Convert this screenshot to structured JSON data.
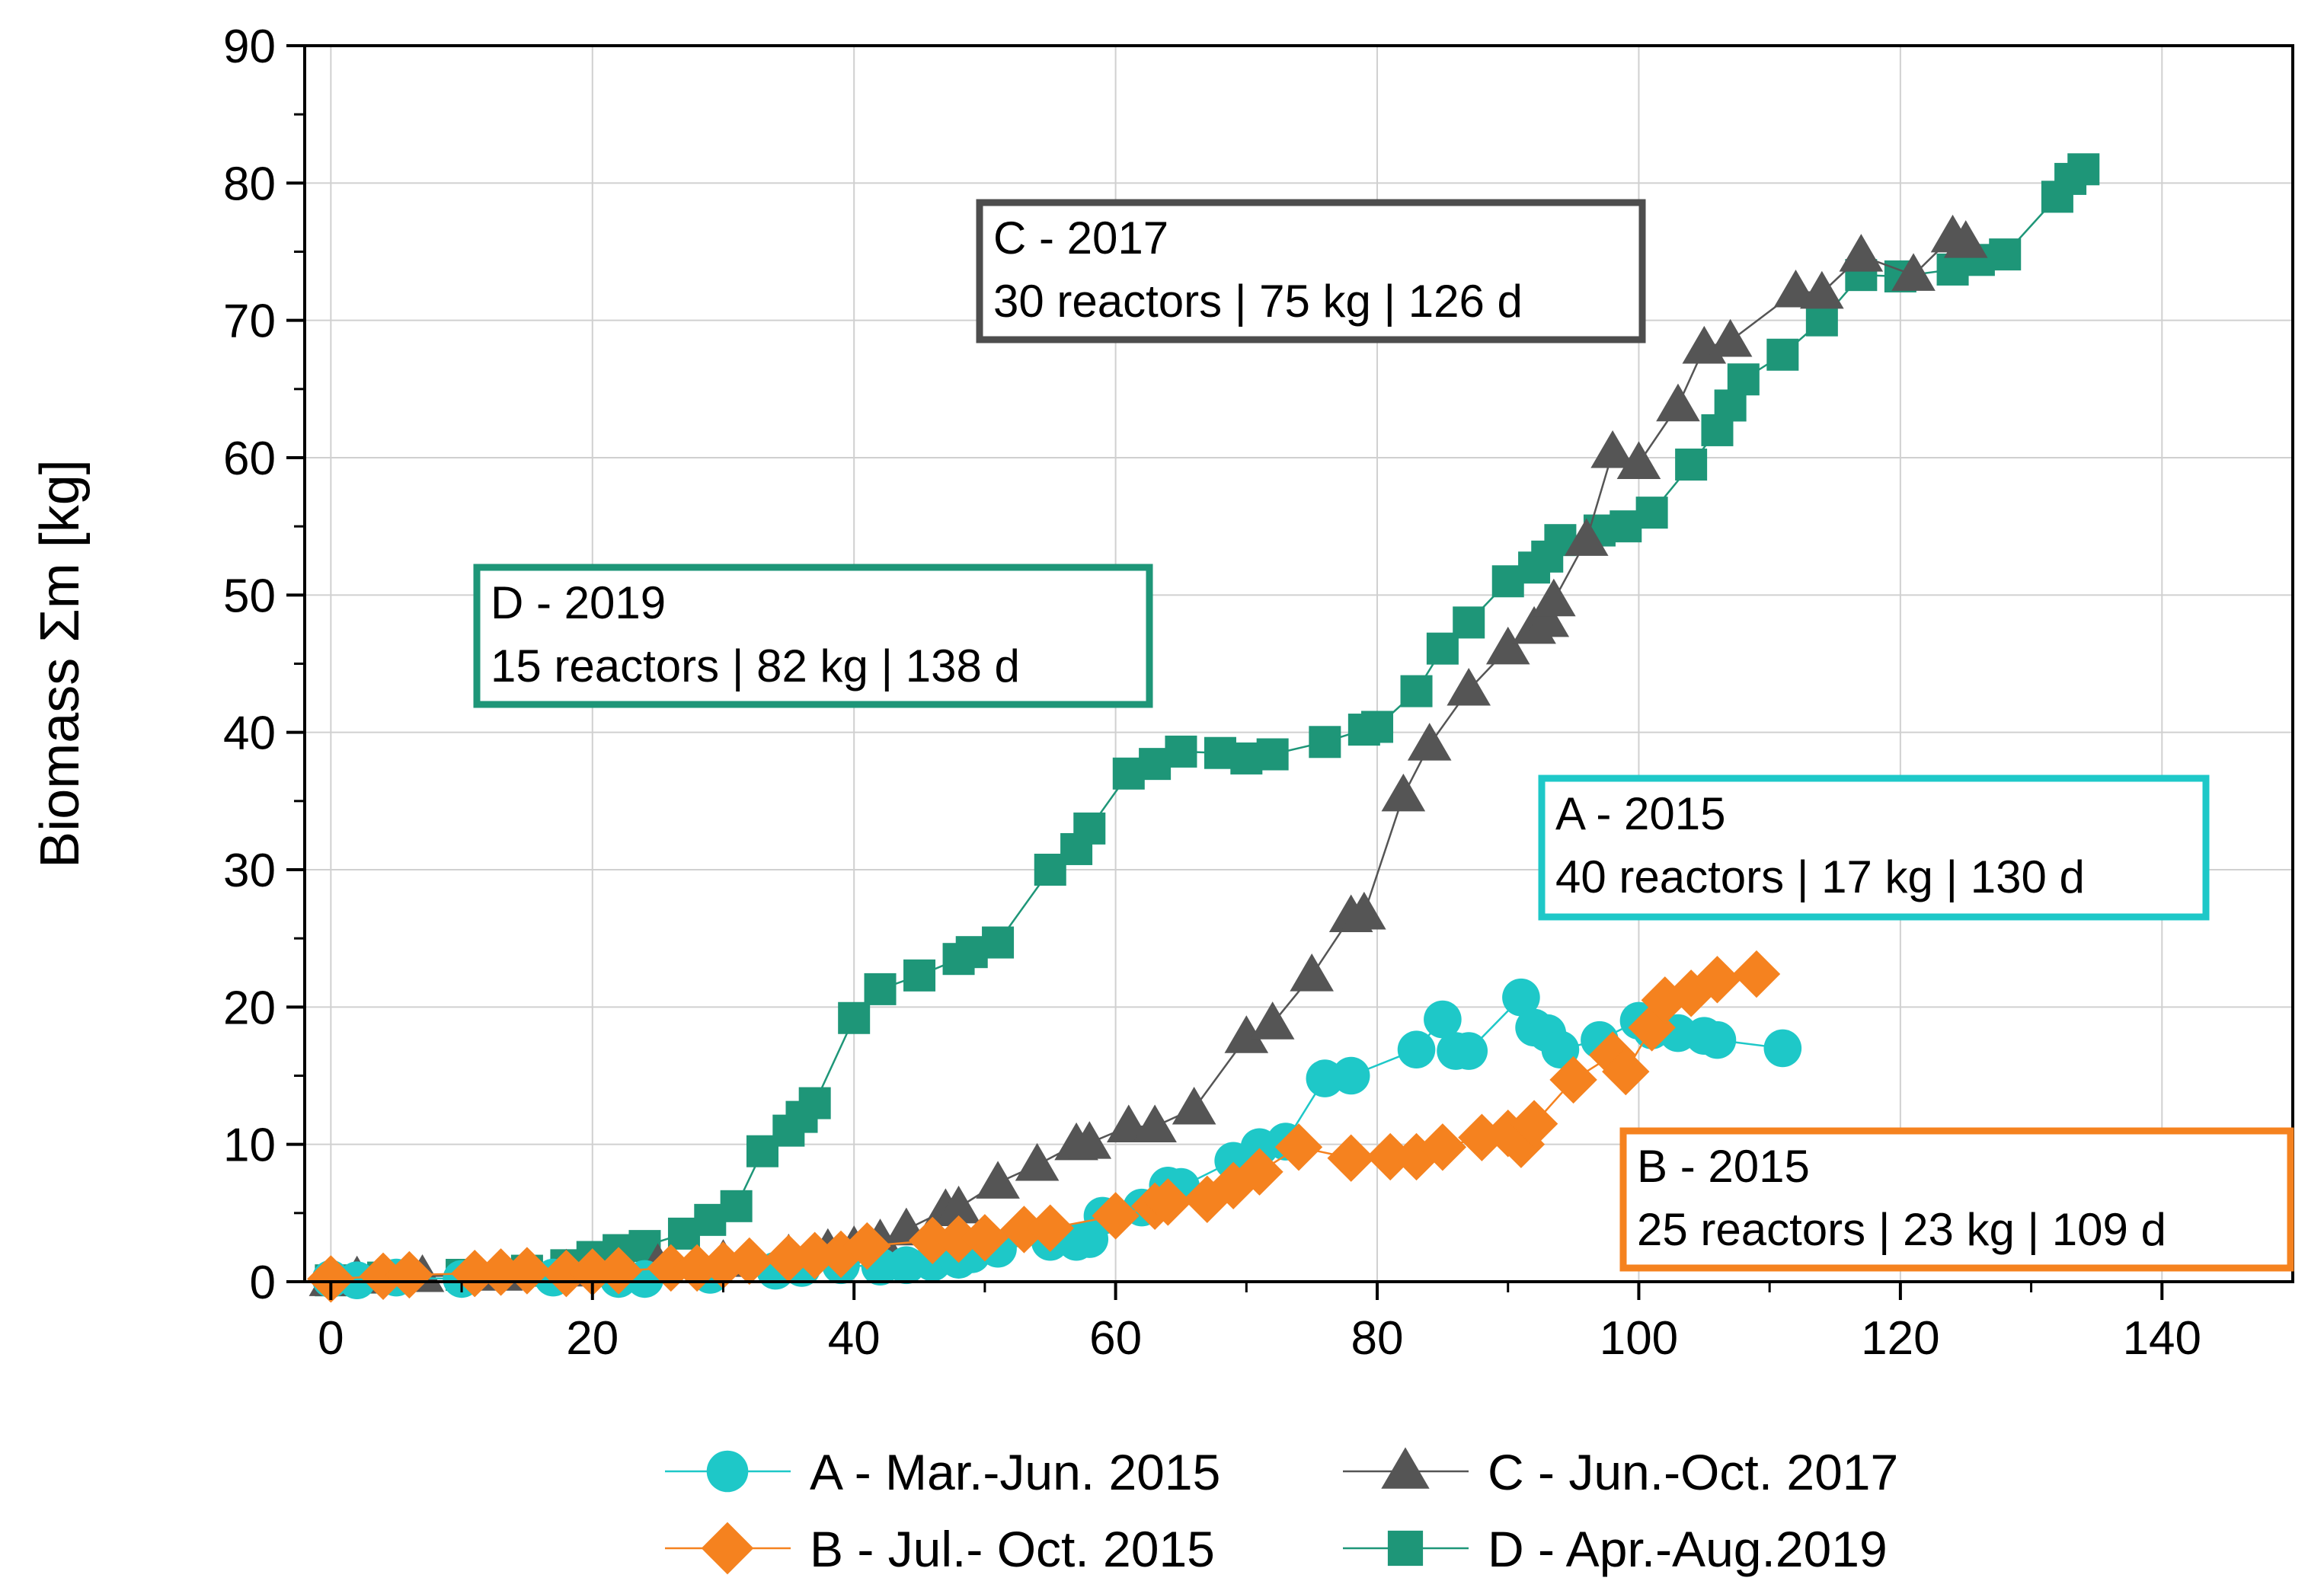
{
  "chart_data": {
    "type": "scatter",
    "title": "",
    "xlabel": "",
    "ylabel": "Biomass Σm [kg]",
    "xlim": [
      -2,
      150
    ],
    "ylim": [
      0,
      90
    ],
    "x_ticks": [
      "0",
      "20",
      "40",
      "60",
      "80",
      "100",
      "120",
      "140"
    ],
    "y_ticks": [
      "0",
      "10",
      "20",
      "30",
      "40",
      "50",
      "60",
      "70",
      "80",
      "90"
    ],
    "grid": true,
    "legend_position": "bottom",
    "series": [
      {
        "name": "A - Mar.-Jun. 2015",
        "color": "#1ec8c8",
        "marker": "circle",
        "points": [
          [
            0,
            0.2
          ],
          [
            2,
            0.1
          ],
          [
            5,
            0.3
          ],
          [
            10,
            0.2
          ],
          [
            17,
            0.3
          ],
          [
            22,
            0.2
          ],
          [
            24,
            0.2
          ],
          [
            29,
            0.5
          ],
          [
            34,
            0.8
          ],
          [
            36,
            1.0
          ],
          [
            39,
            1.2
          ],
          [
            42,
            1.1
          ],
          [
            44,
            1.2
          ],
          [
            46,
            1.4
          ],
          [
            48,
            1.6
          ],
          [
            49,
            2
          ],
          [
            51,
            2.4
          ],
          [
            55,
            2.9
          ],
          [
            57,
            2.9
          ],
          [
            58,
            3.1
          ],
          [
            59,
            4.8
          ],
          [
            62,
            5.4
          ],
          [
            64,
            7.0
          ],
          [
            65,
            6.9
          ],
          [
            69,
            8.8
          ],
          [
            71,
            9.8
          ],
          [
            73,
            10.2
          ],
          [
            76,
            14.8
          ],
          [
            78,
            15.0
          ],
          [
            83,
            16.9
          ],
          [
            85,
            19.1
          ],
          [
            86,
            16.8
          ],
          [
            87,
            16.8
          ],
          [
            91,
            20.7
          ],
          [
            92,
            18.5
          ],
          [
            93,
            18.1
          ],
          [
            94,
            16.9
          ],
          [
            97,
            17.6
          ],
          [
            100,
            19.0
          ],
          [
            101,
            18.3
          ],
          [
            103,
            18.1
          ],
          [
            105,
            17.9
          ],
          [
            106,
            17.6
          ],
          [
            111,
            17.0
          ]
        ]
      },
      {
        "name": "B - Jul.- Oct. 2015",
        "color": "#f5821f",
        "marker": "diamond",
        "points": [
          [
            0,
            0.2
          ],
          [
            4,
            0.4
          ],
          [
            6,
            0.5
          ],
          [
            11,
            0.6
          ],
          [
            13,
            0.7
          ],
          [
            15,
            0.8
          ],
          [
            18,
            0.6
          ],
          [
            20,
            0.7
          ],
          [
            22,
            0.8
          ],
          [
            26,
            1.0
          ],
          [
            28,
            1.0
          ],
          [
            30,
            1.2
          ],
          [
            32,
            1.5
          ],
          [
            35,
            1.7
          ],
          [
            37,
            1.9
          ],
          [
            39,
            2.0
          ],
          [
            41,
            2.6
          ],
          [
            46,
            3.0
          ],
          [
            48,
            3.1
          ],
          [
            50,
            3.2
          ],
          [
            53,
            3.8
          ],
          [
            55,
            3.9
          ],
          [
            60,
            4.8
          ],
          [
            63,
            5.5
          ],
          [
            64,
            5.8
          ],
          [
            67,
            6.0
          ],
          [
            69,
            7.0
          ],
          [
            71,
            8.0
          ],
          [
            74,
            9.8
          ],
          [
            78,
            9.0
          ],
          [
            81,
            9.1
          ],
          [
            83,
            9.1
          ],
          [
            85,
            9.8
          ],
          [
            88,
            10.5
          ],
          [
            90,
            10.8
          ],
          [
            91,
            10.0
          ],
          [
            92,
            11.5
          ],
          [
            95,
            14.7
          ],
          [
            98,
            16.5
          ],
          [
            99,
            15.3
          ],
          [
            101,
            18.5
          ],
          [
            102,
            20.5
          ],
          [
            104,
            21.0
          ],
          [
            106,
            22.0
          ],
          [
            109,
            22.4
          ]
        ]
      },
      {
        "name": "C - Jun.-Oct. 2017",
        "color": "#555555",
        "marker": "triangle",
        "points": [
          [
            0,
            0.1
          ],
          [
            2,
            0.3
          ],
          [
            7,
            0.4
          ],
          [
            13,
            0.5
          ],
          [
            18,
            0.8
          ],
          [
            25,
            1.2
          ],
          [
            30,
            1.5
          ],
          [
            35,
            1.9
          ],
          [
            38,
            2.3
          ],
          [
            40,
            2.5
          ],
          [
            42,
            3.0
          ],
          [
            44,
            3.8
          ],
          [
            47,
            5.2
          ],
          [
            48,
            5.4
          ],
          [
            51,
            7.2
          ],
          [
            54,
            8.5
          ],
          [
            57,
            10.0
          ],
          [
            58,
            10.1
          ],
          [
            61,
            11.3
          ],
          [
            63,
            11.3
          ],
          [
            66,
            12.6
          ],
          [
            70,
            17.8
          ],
          [
            72,
            18.8
          ],
          [
            75,
            22.3
          ],
          [
            78,
            26.6
          ],
          [
            79,
            26.8
          ],
          [
            82,
            35.4
          ],
          [
            84,
            39.1
          ],
          [
            87,
            43.1
          ],
          [
            90,
            46.1
          ],
          [
            92,
            47.6
          ],
          [
            93,
            48.1
          ],
          [
            93.5,
            49.6
          ],
          [
            96,
            54.0
          ],
          [
            98,
            60.4
          ],
          [
            100,
            59.6
          ],
          [
            103,
            63.8
          ],
          [
            105,
            68.0
          ],
          [
            107,
            68.5
          ],
          [
            112,
            72.1
          ],
          [
            114,
            72.0
          ],
          [
            117,
            74.7
          ],
          [
            121,
            73.3
          ],
          [
            124,
            76.1
          ],
          [
            125,
            75.7
          ]
        ]
      },
      {
        "name": "D - Apr.-Aug.2019",
        "color": "#1e9678",
        "marker": "square",
        "points": [
          [
            0,
            0.1
          ],
          [
            4,
            0.3
          ],
          [
            10,
            0.5
          ],
          [
            15,
            0.8
          ],
          [
            18,
            1.2
          ],
          [
            20,
            1.8
          ],
          [
            22,
            2.3
          ],
          [
            24,
            2.6
          ],
          [
            27,
            3.5
          ],
          [
            29,
            4.5
          ],
          [
            31,
            5.5
          ],
          [
            33,
            9.5
          ],
          [
            35,
            11.0
          ],
          [
            36,
            12.0
          ],
          [
            37,
            13.0
          ],
          [
            40,
            19.2
          ],
          [
            42,
            21.3
          ],
          [
            45,
            22.3
          ],
          [
            48,
            23.5
          ],
          [
            49,
            24.0
          ],
          [
            51,
            24.7
          ],
          [
            55,
            30.0
          ],
          [
            57,
            31.5
          ],
          [
            58,
            33.0
          ],
          [
            61,
            37.0
          ],
          [
            63,
            37.7
          ],
          [
            65,
            38.6
          ],
          [
            68,
            38.5
          ],
          [
            70,
            38.1
          ],
          [
            72,
            38.4
          ],
          [
            76,
            39.3
          ],
          [
            79,
            40.2
          ],
          [
            80,
            40.4
          ],
          [
            83,
            43.0
          ],
          [
            85,
            46.1
          ],
          [
            87,
            48.0
          ],
          [
            90,
            51.0
          ],
          [
            92,
            52.0
          ],
          [
            93,
            52.8
          ],
          [
            94,
            54.0
          ],
          [
            97,
            54.7
          ],
          [
            99,
            55.0
          ],
          [
            101,
            56.0
          ],
          [
            104,
            59.5
          ],
          [
            106,
            62.0
          ],
          [
            107,
            63.8
          ],
          [
            108,
            65.7
          ],
          [
            111,
            67.5
          ],
          [
            114,
            70.0
          ],
          [
            117,
            73.3
          ],
          [
            120,
            73.2
          ],
          [
            124,
            73.7
          ],
          [
            126,
            74.4
          ],
          [
            128,
            74.8
          ],
          [
            132,
            79.0
          ],
          [
            133,
            80.3
          ],
          [
            134,
            81.0
          ]
        ]
      }
    ],
    "annotations": [
      {
        "line1": "C - 2017",
        "line2": "30 reactors | 75 kg | 126 d",
        "color": "#4d4d4d"
      },
      {
        "line1": "D - 2019",
        "line2": "15 reactors  | 82 kg | 138 d",
        "color": "#1e9678"
      },
      {
        "line1": "A - 2015",
        "line2": "40 reactors  | 17 kg | 130 d",
        "color": "#1ec8c8"
      },
      {
        "line1": "B - 2015",
        "line2": "25 reactors  | 23 kg | 109 d",
        "color": "#f5821f"
      }
    ]
  }
}
